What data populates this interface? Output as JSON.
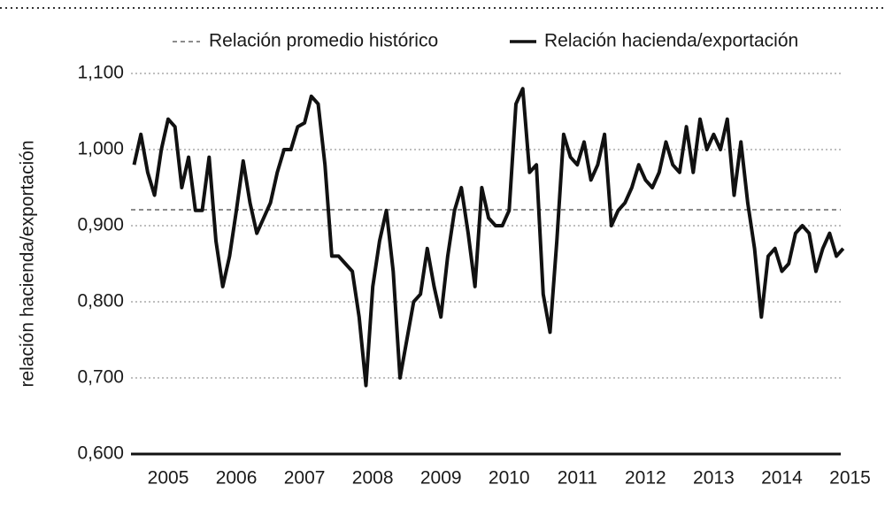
{
  "chart_data": {
    "type": "line",
    "y_label": "relación hacienda/exportación",
    "x": [
      2004.5,
      2004.6,
      2004.7,
      2004.8,
      2004.9,
      2005.0,
      2005.1,
      2005.2,
      2005.3,
      2005.4,
      2005.5,
      2005.6,
      2005.7,
      2005.8,
      2005.9,
      2006.0,
      2006.1,
      2006.2,
      2006.3,
      2006.4,
      2006.5,
      2006.6,
      2006.7,
      2006.8,
      2006.9,
      2007.0,
      2007.1,
      2007.2,
      2007.3,
      2007.4,
      2007.5,
      2007.6,
      2007.7,
      2007.8,
      2007.9,
      2008.0,
      2008.1,
      2008.2,
      2008.3,
      2008.4,
      2008.5,
      2008.6,
      2008.7,
      2008.8,
      2008.9,
      2009.0,
      2009.1,
      2009.2,
      2009.3,
      2009.4,
      2009.5,
      2009.6,
      2009.7,
      2009.8,
      2009.9,
      2010.0,
      2010.1,
      2010.2,
      2010.3,
      2010.4,
      2010.5,
      2010.6,
      2010.7,
      2010.8,
      2010.9,
      2011.0,
      2011.1,
      2011.2,
      2011.3,
      2011.4,
      2011.5,
      2011.6,
      2011.7,
      2011.8,
      2011.9,
      2012.0,
      2012.1,
      2012.2,
      2012.3,
      2012.4,
      2012.5,
      2012.6,
      2012.7,
      2012.8,
      2012.9,
      2013.0,
      2013.1,
      2013.2,
      2013.3,
      2013.4,
      2013.5,
      2013.6,
      2013.7,
      2013.8,
      2013.9,
      2014.0,
      2014.1,
      2014.2,
      2014.3,
      2014.4,
      2014.5,
      2014.6,
      2014.7,
      2014.8,
      2014.9
    ],
    "series": [
      {
        "name": "Relación hacienda/exportación",
        "color": "#111111",
        "values": [
          0.98,
          1.02,
          0.97,
          0.94,
          1.0,
          1.04,
          1.03,
          0.95,
          0.99,
          0.92,
          0.92,
          0.99,
          0.88,
          0.82,
          0.86,
          0.92,
          0.985,
          0.93,
          0.89,
          0.91,
          0.93,
          0.97,
          1.0,
          1.0,
          1.03,
          1.035,
          1.07,
          1.06,
          0.98,
          0.86,
          0.86,
          0.85,
          0.84,
          0.78,
          0.69,
          0.82,
          0.88,
          0.92,
          0.84,
          0.7,
          0.75,
          0.8,
          0.81,
          0.87,
          0.82,
          0.78,
          0.86,
          0.92,
          0.95,
          0.89,
          0.82,
          0.95,
          0.91,
          0.9,
          0.9,
          0.92,
          1.06,
          1.08,
          0.97,
          0.98,
          0.81,
          0.76,
          0.88,
          1.02,
          0.99,
          0.98,
          1.01,
          0.96,
          0.98,
          1.02,
          0.9,
          0.92,
          0.93,
          0.95,
          0.98,
          0.96,
          0.95,
          0.97,
          1.01,
          0.98,
          0.97,
          1.03,
          0.97,
          1.04,
          1.0,
          1.02,
          1.0,
          1.04,
          0.94,
          1.01,
          0.93,
          0.87,
          0.78,
          0.86,
          0.87,
          0.84,
          0.85,
          0.89,
          0.9,
          0.89,
          0.84,
          0.87,
          0.89,
          0.86,
          0.87
        ]
      }
    ],
    "reference": {
      "name": "Relación promedio histórico",
      "value": 0.921,
      "color": "#8c8c8c"
    },
    "xlim": [
      2004.5,
      2015
    ],
    "xticks": [
      2005,
      2006,
      2007,
      2008,
      2009,
      2010,
      2011,
      2012,
      2013,
      2014,
      2015
    ],
    "ylim": [
      0.6,
      1.1
    ],
    "yticks": [
      {
        "value": 0.6,
        "label": "0,600"
      },
      {
        "value": 0.7,
        "label": "0,700"
      },
      {
        "value": 0.8,
        "label": "0,800"
      },
      {
        "value": 0.9,
        "label": "0,900"
      },
      {
        "value": 1.0,
        "label": "1,000"
      },
      {
        "value": 1.1,
        "label": "1,100"
      }
    ],
    "grid": true
  }
}
